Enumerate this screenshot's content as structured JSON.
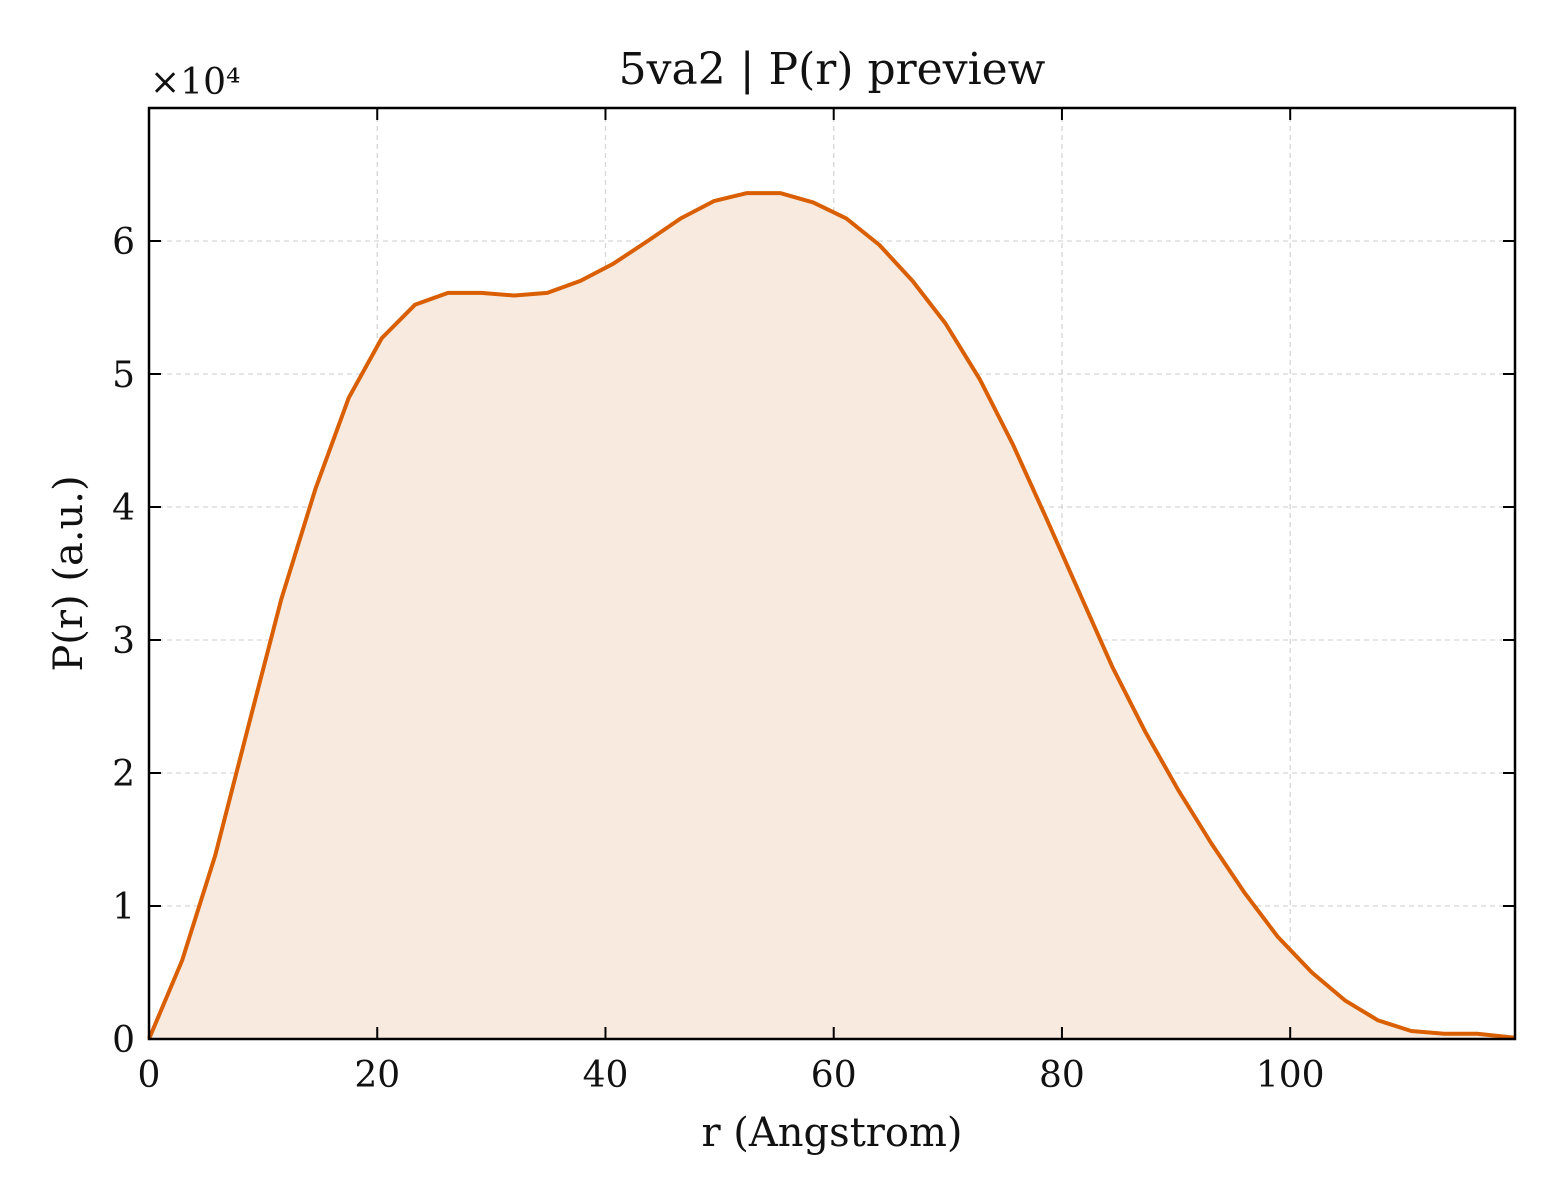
{
  "chart_data": {
    "type": "area",
    "title": "5va2 | P(r) preview",
    "xlabel": "r (Angstrom)",
    "ylabel": "P(r) (a.u.)",
    "y_multiplier_label": "×10⁴",
    "xlim": [
      0,
      119.7
    ],
    "ylim": [
      0,
      70000
    ],
    "x_ticks": [
      0,
      20,
      40,
      60,
      80,
      100
    ],
    "x_tick_labels": [
      "0",
      "20",
      "40",
      "60",
      "80",
      "100"
    ],
    "y_ticks": [
      0,
      10000,
      20000,
      30000,
      40000,
      50000,
      60000
    ],
    "y_tick_labels": [
      "0",
      "1",
      "2",
      "3",
      "4",
      "5",
      "6"
    ],
    "grid": true,
    "colors": {
      "line": "#d95f02",
      "fill": "#f8eadf",
      "grid": "#d6d6d6"
    },
    "series": [
      {
        "x": [
          0,
          2.9,
          5.8,
          8.7,
          11.6,
          14.6,
          17.5,
          20.4,
          23.3,
          26.2,
          29.1,
          32.0,
          34.9,
          37.8,
          40.7,
          43.7,
          46.6,
          49.5,
          52.4,
          55.3,
          58.2,
          61.1,
          64.0,
          66.9,
          69.8,
          72.8,
          75.7,
          78.6,
          81.5,
          84.4,
          87.3,
          90.2,
          93.1,
          96.0,
          98.9,
          101.9,
          104.8,
          107.7,
          110.6,
          113.5,
          116.4,
          119.7
        ],
        "y": [
          0,
          5900,
          13800,
          23500,
          33100,
          41400,
          48200,
          52700,
          55200,
          56100,
          56100,
          55900,
          56100,
          57000,
          58300,
          60000,
          61700,
          63000,
          63600,
          63600,
          62900,
          61700,
          59700,
          57000,
          53800,
          49600,
          44700,
          39200,
          33600,
          28000,
          23100,
          18700,
          14700,
          11000,
          7700,
          5000,
          2900,
          1400,
          600,
          400,
          400,
          100
        ]
      }
    ]
  }
}
